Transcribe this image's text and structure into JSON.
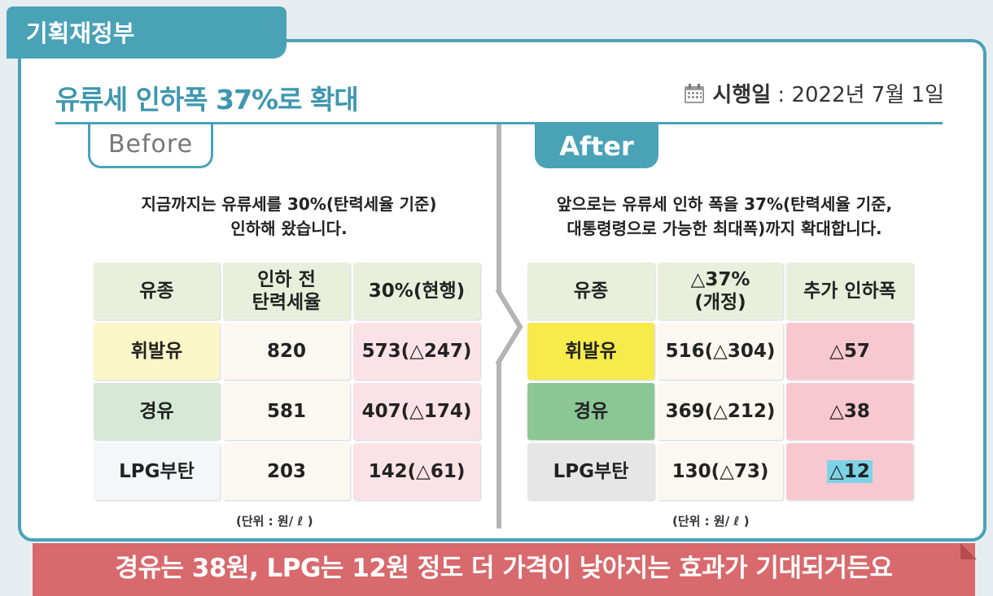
{
  "ministry": "기획재정부",
  "headline": "유류세 인하폭 37%로 확대",
  "effective": {
    "icon": "calendar-icon",
    "label": "시행일",
    "separator": " : ",
    "date": "2022년 7월 1일"
  },
  "before": {
    "tag": "Before",
    "desc_line1": "지금까지는 유류세를 30%(탄력세율 기준)",
    "desc_line2": "인하해 왔습니다.",
    "headers": {
      "c1": "유종",
      "c2_line1": "인하 전",
      "c2_line2": "탄력세율",
      "c3": "30%(현행)"
    },
    "rows": [
      {
        "fuel": "휘발유",
        "base": "820",
        "current": "573(△247)"
      },
      {
        "fuel": "경유",
        "base": "581",
        "current": "407(△174)"
      },
      {
        "fuel": "LPG부탄",
        "base": "203",
        "current": "142(△61)"
      }
    ],
    "unit": "(단위 : 원/ ℓ )"
  },
  "after": {
    "tag": "After",
    "desc_line1": "앞으로는 유류세 인하 폭을 37%(탄력세율 기준,",
    "desc_line2": "대통령령으로 가능한 최대폭)까지 확대합니다.",
    "headers": {
      "c1": "유종",
      "c2_line1": "△37%",
      "c2_line2": "(개정)",
      "c3": "추가 인하폭"
    },
    "rows": [
      {
        "fuel": "휘발유",
        "revised": "516(△304)",
        "extra": "△57"
      },
      {
        "fuel": "경유",
        "revised": "369(△212)",
        "extra": "△38"
      },
      {
        "fuel": "LPG부탄",
        "revised": "130(△73)",
        "extra": "△12"
      }
    ],
    "unit": "(단위 : 원/ ℓ )"
  },
  "banner": "경유는 38원, LPG는 12원 정도 더 가격이 낮아지는 효과가 기대되거든요",
  "colors": {
    "accent": "#4aa2b7",
    "header_cell": "#e9efdb",
    "gasoline_before": "#fbf6c7",
    "diesel_before": "#d5e9d6",
    "lpg_before": "#f4f6f7",
    "gasoline_after": "#f7ea4b",
    "diesel_after": "#8ac795",
    "lpg_after": "#e6e6e6",
    "value_cell": "#fbf7f1",
    "pink_cell": "#fbe2e6",
    "pink_cell_strong": "#f8c8d1",
    "banner": "#d8696c"
  }
}
